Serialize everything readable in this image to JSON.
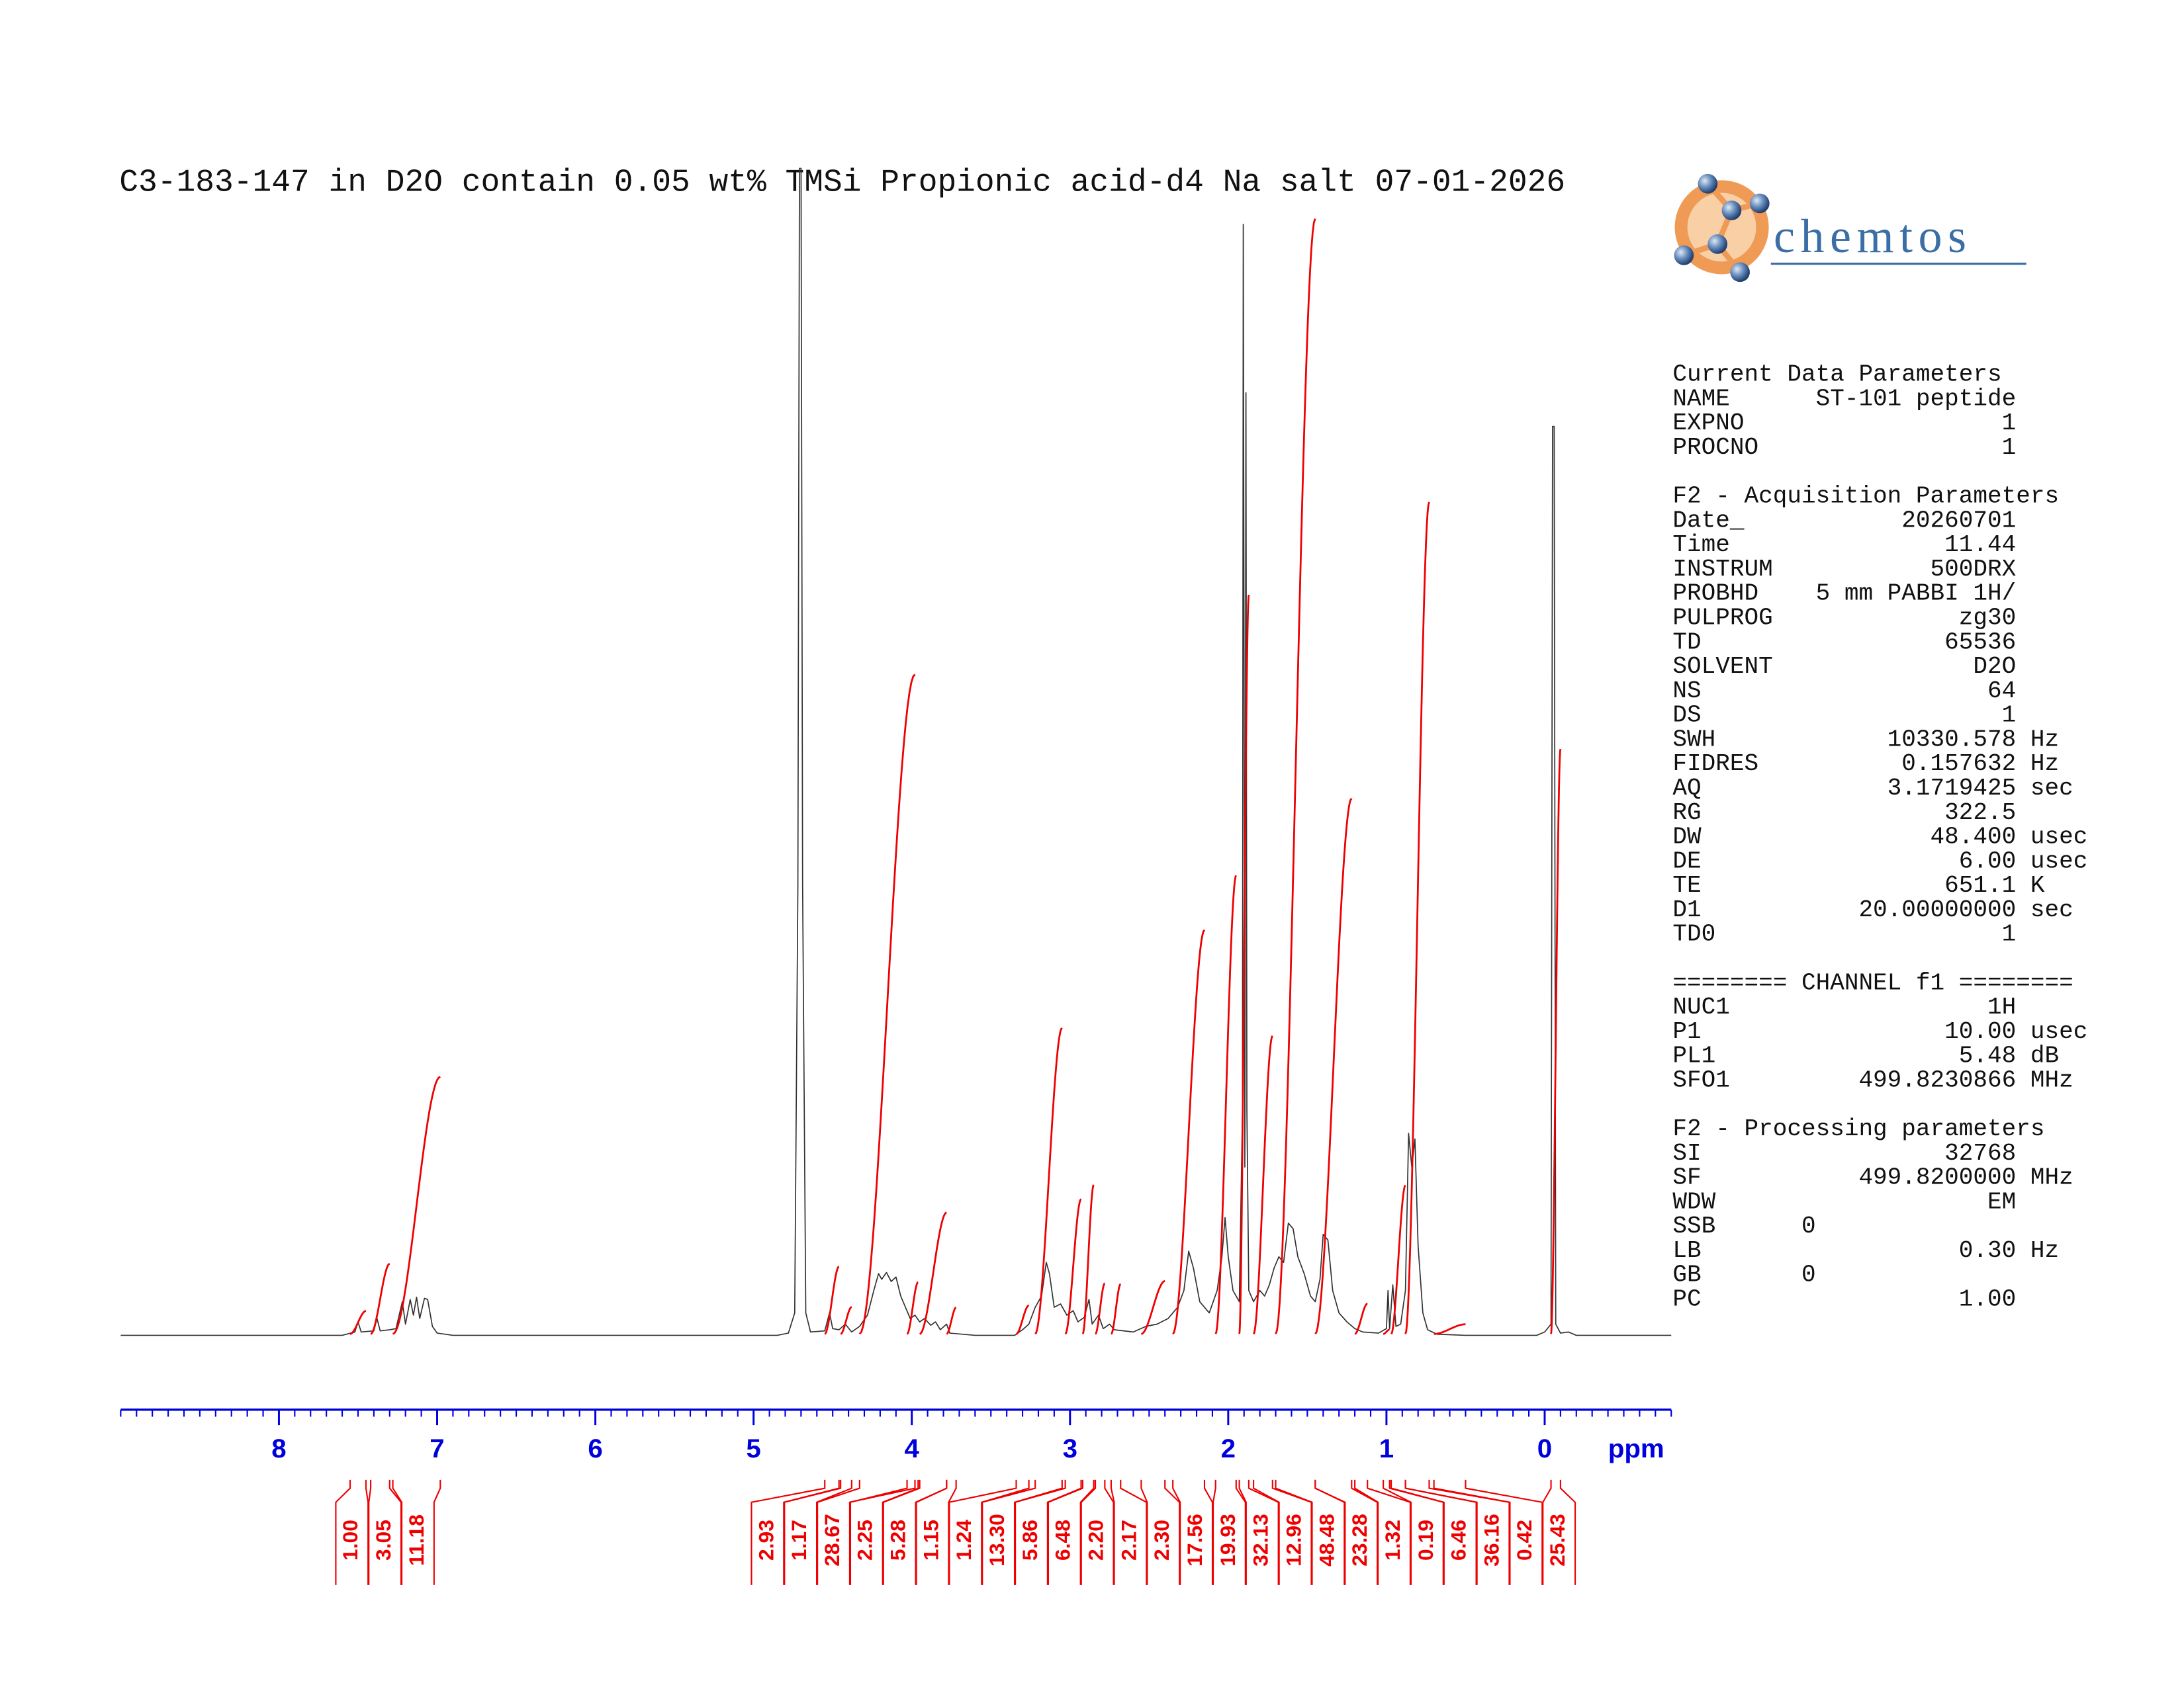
{
  "chart_data": {
    "type": "nmr",
    "title": "C3-183-147 in D2O contain 0.05 wt% TMSi Propionic acid-d4 Na salt 07-01-2026",
    "xlabel": "ppm",
    "xlim": [
      9.0,
      -0.8
    ],
    "xticks": [
      8,
      7,
      6,
      5,
      4,
      3,
      2,
      1,
      0
    ],
    "xminor_step": 0.1,
    "ylim": [
      0,
      105
    ],
    "color": "#333333",
    "axis_color": "#0000dd",
    "integral_color": "#ee0000",
    "x": [
      9.0,
      7.6,
      7.52,
      7.5,
      7.48,
      7.4,
      7.38,
      7.36,
      7.3,
      7.26,
      7.22,
      7.2,
      7.17,
      7.15,
      7.13,
      7.11,
      7.08,
      7.06,
      7.03,
      7.0,
      6.9,
      4.85,
      4.78,
      4.74,
      4.72,
      4.71,
      4.7,
      4.69,
      4.67,
      4.64,
      4.55,
      4.52,
      4.5,
      4.46,
      4.42,
      4.38,
      4.33,
      4.28,
      4.24,
      4.21,
      4.19,
      4.16,
      4.13,
      4.1,
      4.07,
      4.04,
      4.01,
      3.98,
      3.95,
      3.92,
      3.88,
      3.85,
      3.82,
      3.78,
      3.76,
      3.6,
      3.35,
      3.3,
      3.26,
      3.22,
      3.18,
      3.15,
      3.13,
      3.1,
      3.06,
      3.02,
      2.98,
      2.95,
      2.91,
      2.88,
      2.86,
      2.82,
      2.79,
      2.75,
      2.72,
      2.6,
      2.52,
      2.45,
      2.38,
      2.32,
      2.28,
      2.25,
      2.22,
      2.18,
      2.12,
      2.07,
      2.04,
      2.02,
      2.0,
      1.97,
      1.93,
      1.91,
      1.905,
      1.9,
      1.895,
      1.888,
      1.882,
      1.87,
      1.84,
      1.8,
      1.77,
      1.74,
      1.71,
      1.68,
      1.65,
      1.62,
      1.59,
      1.56,
      1.52,
      1.48,
      1.45,
      1.42,
      1.4,
      1.37,
      1.34,
      1.3,
      1.25,
      1.2,
      1.15,
      1.05,
      1.0,
      0.99,
      0.98,
      0.96,
      0.94,
      0.91,
      0.88,
      0.86,
      0.84,
      0.82,
      0.8,
      0.77,
      0.74,
      0.68,
      0.5,
      0.05,
      0.0,
      -0.04,
      -0.05,
      -0.06,
      -0.07,
      -0.1,
      -0.15,
      -0.2,
      -0.8
    ],
    "values": [
      0,
      0,
      0.3,
      1.2,
      0.3,
      0.4,
      1.5,
      0.4,
      0.5,
      0.6,
      3.0,
      1.0,
      3.2,
      1.8,
      3.4,
      1.5,
      3.3,
      3.2,
      0.8,
      0.2,
      0,
      0,
      0.2,
      2,
      40,
      104,
      104,
      40,
      2,
      0.3,
      0.4,
      2.0,
      0.6,
      0.5,
      1.0,
      0.3,
      0.8,
      1.8,
      4.0,
      5.5,
      5.0,
      5.6,
      4.8,
      5.2,
      3.5,
      2.5,
      1.5,
      1.8,
      1.2,
      1.5,
      0.9,
      1.2,
      0.5,
      1.0,
      0.2,
      0,
      0,
      0.5,
      1.0,
      2.5,
      3.5,
      6.5,
      5.5,
      2.5,
      2.8,
      1.8,
      2.2,
      1.2,
      1.6,
      3.2,
      1.0,
      1.8,
      0.6,
      1.0,
      0.5,
      0.3,
      0.8,
      1.0,
      1.5,
      2.5,
      4.0,
      7.5,
      6.0,
      3.0,
      2.0,
      4.0,
      7.0,
      10.5,
      7.0,
      4.0,
      3.0,
      20,
      99,
      60,
      15,
      84,
      20,
      4.0,
      3.0,
      4.0,
      3.5,
      4.5,
      6.0,
      7.0,
      6.5,
      10,
      9.5,
      7.0,
      5.5,
      3.5,
      3.0,
      5.0,
      9.0,
      8.5,
      4.0,
      2.0,
      1.2,
      0.6,
      0.3,
      0.2,
      0.6,
      4.0,
      0.6,
      4.5,
      0.8,
      1.0,
      4.0,
      18,
      15,
      17.5,
      8.0,
      2.0,
      0.5,
      0.1,
      0,
      0,
      0.3,
      1.0,
      81,
      81,
      1.0,
      0.2,
      0.3,
      0,
      0
    ],
    "integrals": {
      "ranges": [
        [
          7.55,
          7.45
        ],
        [
          7.42,
          7.3
        ],
        [
          7.28,
          6.98
        ],
        [
          4.55,
          4.46
        ],
        [
          4.45,
          4.38
        ],
        [
          4.33,
          3.98
        ],
        [
          4.03,
          3.96
        ],
        [
          3.95,
          3.78
        ],
        [
          3.78,
          3.72
        ],
        [
          3.34,
          3.26
        ],
        [
          3.22,
          3.05
        ],
        [
          3.03,
          2.93
        ],
        [
          2.92,
          2.85
        ],
        [
          2.84,
          2.78
        ],
        [
          2.74,
          2.68
        ],
        [
          2.55,
          2.4
        ],
        [
          2.35,
          2.15
        ],
        [
          2.08,
          1.95
        ],
        [
          1.93,
          1.87
        ],
        [
          1.84,
          1.72
        ],
        [
          1.7,
          1.45
        ],
        [
          1.45,
          1.22
        ],
        [
          1.2,
          1.12
        ],
        [
          1.02,
          0.98
        ],
        [
          0.97,
          0.88
        ],
        [
          0.88,
          0.73
        ],
        [
          0.7,
          0.5
        ],
        [
          -0.04,
          -0.1
        ]
      ],
      "values": [
        1.0,
        3.05,
        11.18,
        2.93,
        1.17,
        28.67,
        2.25,
        5.28,
        1.15,
        1.24,
        13.3,
        5.86,
        6.48,
        2.2,
        2.17,
        2.3,
        17.56,
        19.93,
        32.13,
        12.96,
        48.48,
        23.28,
        1.32,
        0.19,
        6.46,
        36.16,
        0.42,
        25.43
      ],
      "value_labels": [
        "1.00",
        "3.05",
        "11.18",
        "2.93",
        "1.17",
        "28.67",
        "2.25",
        "5.28",
        "1.15",
        "1.24",
        "13.30",
        "5.86",
        "6.48",
        "2.20",
        "2.17",
        "2.30",
        "17.56",
        "19.93",
        "32.13",
        "12.96",
        "48.48",
        "23.28",
        "1.32",
        "0.19",
        "6.46",
        "36.16",
        "0.42",
        "25.43"
      ]
    }
  },
  "logo": "chemtos",
  "parameters": [
    {
      "heading": "Current Data Parameters",
      "lines": [
        "NAME      ST-101 peptide",
        "EXPNO                  1",
        "PROCNO                 1"
      ]
    },
    {
      "heading": "F2 - Acquisition Parameters",
      "lines": [
        "Date_           20260701",
        "Time               11.44",
        "INSTRUM           500DRX",
        "PROBHD    5 mm PABBI 1H/",
        "PULPROG             zg30",
        "TD                 65536",
        "SOLVENT              D2O",
        "NS                    64",
        "DS                     1",
        "SWH            10330.578 Hz",
        "FIDRES          0.157632 Hz",
        "AQ             3.1719425 sec",
        "RG                 322.5",
        "DW                48.400 usec",
        "DE                  6.00 usec",
        "TE                 651.1 K",
        "D1           20.00000000 sec",
        "TD0                    1"
      ]
    },
    {
      "heading": "======== CHANNEL f1 ========",
      "lines": [
        "NUC1                  1H",
        "P1                 10.00 usec",
        "PL1                 5.48 dB",
        "SFO1         499.8230866 MHz"
      ]
    },
    {
      "heading": "F2 - Processing parameters",
      "lines": [
        "SI                 32768",
        "SF           499.8200000 MHz",
        "WDW                   EM",
        "SSB      0",
        "LB                  0.30 Hz",
        "GB       0",
        "PC                  1.00"
      ]
    }
  ]
}
